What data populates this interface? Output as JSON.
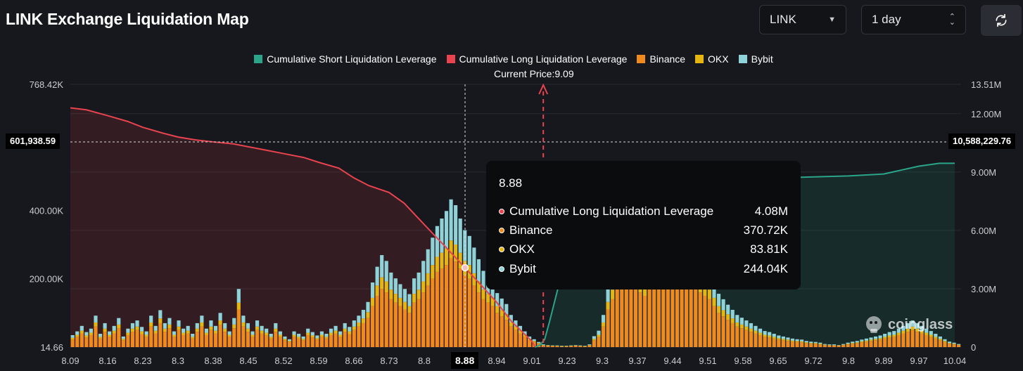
{
  "header": {
    "title": "LINK Exchange Liquidation Map",
    "coin_select": "LINK",
    "range_select": "1 day",
    "refresh_icon": "refresh-icon"
  },
  "watermark": "coinglass",
  "current_price_label": "Current Price:9.09",
  "crosshair": {
    "left_value": "601,938.59",
    "right_value": "10,588,229.76",
    "x_value": "8.88"
  },
  "tooltip": {
    "title": "8.88",
    "rows": [
      {
        "label": "Cumulative Long Liquidation Leverage",
        "value": "4.08M",
        "color": "#e8434f"
      },
      {
        "label": "Binance",
        "value": "370.72K",
        "color": "#f08a1c"
      },
      {
        "label": "OKX",
        "value": "83.81K",
        "color": "#e5b611"
      },
      {
        "label": "Bybit",
        "value": "244.04K",
        "color": "#8fd3d8"
      }
    ]
  },
  "colors": {
    "short": "#2aa58a",
    "long": "#e8434f",
    "binance": "#f08a1c",
    "okx": "#e5b611",
    "bybit": "#8fd3d8"
  },
  "chart_data": {
    "type": "bar",
    "title": "LINK Exchange Liquidation Map",
    "legend": [
      {
        "name": "Cumulative Short Liquidation Leverage",
        "color": "#2aa58a"
      },
      {
        "name": "Cumulative Long Liquidation Leverage",
        "color": "#e8434f"
      },
      {
        "name": "Binance",
        "color": "#f08a1c"
      },
      {
        "name": "OKX",
        "color": "#e5b611"
      },
      {
        "name": "Bybit",
        "color": "#8fd3d8"
      }
    ],
    "x_ticks": [
      "8.09",
      "8.16",
      "8.23",
      "8.3",
      "8.38",
      "8.45",
      "8.52",
      "8.59",
      "8.66",
      "8.73",
      "8.8",
      "8.88",
      "8.94",
      "9.01",
      "9.23",
      "9.3",
      "9.37",
      "9.44",
      "9.51",
      "9.58",
      "9.65",
      "9.72",
      "9.8",
      "9.89",
      "9.97",
      "10.04"
    ],
    "left_axis": {
      "ticks": [
        "14.66",
        "200.00K",
        "400.00K",
        "768.42K"
      ],
      "tick_values": [
        14.66,
        200000,
        400000,
        768420
      ],
      "range": [
        0,
        768420
      ]
    },
    "right_axis": {
      "ticks": [
        "0",
        "3.00M",
        "6.00M",
        "9.00M",
        "12.00M",
        "13.51M"
      ],
      "tick_values": [
        0,
        3000000,
        6000000,
        9000000,
        12000000,
        13510000
      ],
      "range": [
        0,
        13510000
      ]
    },
    "current_price": 9.09,
    "price_range": [
      8.09,
      10.04
    ],
    "series": [
      {
        "name": "Cumulative Long Liquidation Leverage",
        "axis": "right",
        "x": [
          8.09,
          8.12,
          8.16,
          8.2,
          8.23,
          8.27,
          8.3,
          8.34,
          8.38,
          8.42,
          8.45,
          8.49,
          8.52,
          8.56,
          8.59,
          8.63,
          8.66,
          8.69,
          8.73,
          8.76,
          8.8,
          8.84,
          8.88,
          8.91,
          8.94,
          8.97,
          9.01,
          9.03
        ],
        "values": [
          12.3,
          12.2,
          11.9,
          11.6,
          11.3,
          11.0,
          10.8,
          10.65,
          10.55,
          10.45,
          10.3,
          10.1,
          9.95,
          9.75,
          9.5,
          9.2,
          8.7,
          8.3,
          7.95,
          7.4,
          6.3,
          5.2,
          4.08,
          3.2,
          2.3,
          1.3,
          0.3,
          0.0
        ]
      },
      {
        "name": "Cumulative Short Liquidation Leverage",
        "axis": "right",
        "x": [
          9.03,
          9.06,
          9.09,
          9.12,
          9.16,
          9.2,
          9.23,
          9.27,
          9.3,
          9.37,
          9.44,
          9.51,
          9.58,
          9.65,
          9.72,
          9.8,
          9.89,
          9.93,
          9.97,
          10.01,
          10.04
        ],
        "values": [
          0.0,
          0.1,
          0.4,
          1.3,
          2.6,
          3.9,
          4.9,
          6.0,
          6.8,
          7.8,
          8.35,
          8.55,
          8.65,
          8.7,
          8.75,
          8.8,
          8.9,
          9.1,
          9.3,
          9.45,
          9.45
        ]
      }
    ],
    "bars_note": "Stacked per-price-level liquidation volume (Binance / OKX / Bybit) on left axis, in thousands",
    "bars": {
      "binance": [
        22,
        30,
        40,
        28,
        35,
        60,
        25,
        45,
        30,
        40,
        55,
        20,
        35,
        45,
        50,
        38,
        30,
        60,
        40,
        70,
        45,
        55,
        30,
        50,
        35,
        40,
        25,
        45,
        60,
        35,
        50,
        40,
        65,
        45,
        30,
        55,
        110,
        60,
        45,
        30,
        50,
        40,
        35,
        25,
        45,
        30,
        20,
        15,
        30,
        25,
        20,
        35,
        28,
        22,
        30,
        25,
        35,
        40,
        30,
        45,
        38,
        50,
        60,
        70,
        85,
        120,
        150,
        170,
        160,
        140,
        130,
        120,
        110,
        100,
        130,
        140,
        160,
        180,
        200,
        220,
        230,
        240,
        260,
        250,
        230,
        210,
        200,
        180,
        160,
        140,
        130,
        120,
        100,
        90,
        80,
        60,
        50,
        40,
        30,
        20,
        15,
        10,
        5,
        4,
        3,
        3,
        2,
        2,
        3,
        4,
        3,
        2,
        5,
        20,
        30,
        60,
        110,
        140,
        170,
        190,
        210,
        200,
        180,
        160,
        150,
        170,
        190,
        210,
        230,
        250,
        270,
        260,
        240,
        220,
        200,
        180,
        160,
        150,
        140,
        120,
        100,
        90,
        80,
        70,
        60,
        55,
        50,
        45,
        40,
        35,
        30,
        28,
        25,
        22,
        20,
        18,
        16,
        15,
        14,
        12,
        10,
        10,
        8,
        6,
        5,
        5,
        4,
        6,
        8,
        10,
        12,
        14,
        16,
        18,
        20,
        22,
        25,
        28,
        30,
        35,
        40,
        45,
        50,
        45,
        40,
        35,
        30,
        25,
        20,
        15,
        10,
        8,
        6
      ],
      "okx": [
        5,
        6,
        8,
        6,
        7,
        12,
        5,
        9,
        6,
        8,
        11,
        4,
        7,
        9,
        10,
        8,
        6,
        12,
        8,
        14,
        9,
        11,
        6,
        10,
        7,
        8,
        5,
        9,
        12,
        7,
        10,
        8,
        13,
        9,
        6,
        11,
        20,
        12,
        9,
        6,
        10,
        8,
        7,
        5,
        9,
        6,
        4,
        3,
        6,
        5,
        4,
        7,
        6,
        4,
        6,
        5,
        7,
        8,
        6,
        9,
        8,
        10,
        12,
        14,
        17,
        24,
        30,
        34,
        32,
        28,
        26,
        24,
        22,
        20,
        26,
        28,
        32,
        36,
        40,
        44,
        46,
        48,
        52,
        50,
        46,
        42,
        40,
        36,
        32,
        28,
        26,
        24,
        20,
        18,
        16,
        12,
        10,
        8,
        6,
        4,
        3,
        2,
        1,
        1,
        1,
        1,
        1,
        1,
        1,
        1,
        1,
        1,
        1,
        4,
        6,
        12,
        22,
        28,
        34,
        38,
        42,
        40,
        36,
        32,
        30,
        34,
        38,
        42,
        46,
        50,
        54,
        52,
        48,
        44,
        40,
        36,
        32,
        30,
        28,
        24,
        20,
        18,
        16,
        14,
        12,
        11,
        10,
        9,
        8,
        7,
        6,
        6,
        5,
        4,
        4,
        4,
        3,
        3,
        3,
        2,
        2,
        2,
        2,
        1,
        1,
        1,
        1,
        1,
        2,
        2,
        2,
        3,
        3,
        4,
        4,
        4,
        5,
        6,
        6,
        7,
        8,
        9,
        10,
        9,
        8,
        7,
        6,
        5,
        4,
        3,
        2,
        2,
        1
      ],
      "bybit": [
        8,
        10,
        14,
        10,
        12,
        20,
        9,
        16,
        10,
        14,
        19,
        7,
        12,
        16,
        18,
        13,
        10,
        20,
        14,
        24,
        16,
        19,
        10,
        18,
        12,
        14,
        9,
        16,
        20,
        12,
        18,
        14,
        22,
        16,
        10,
        19,
        40,
        20,
        16,
        10,
        18,
        14,
        12,
        9,
        16,
        10,
        7,
        5,
        10,
        9,
        7,
        12,
        10,
        8,
        10,
        9,
        12,
        14,
        10,
        16,
        13,
        18,
        20,
        25,
        30,
        45,
        55,
        65,
        60,
        50,
        45,
        40,
        38,
        35,
        45,
        50,
        60,
        70,
        80,
        90,
        100,
        110,
        120,
        115,
        100,
        90,
        85,
        75,
        65,
        55,
        50,
        45,
        38,
        34,
        30,
        22,
        18,
        14,
        10,
        7,
        5,
        3,
        2,
        1,
        1,
        1,
        1,
        1,
        1,
        1,
        1,
        1,
        2,
        8,
        12,
        22,
        40,
        50,
        62,
        70,
        78,
        74,
        66,
        58,
        54,
        62,
        70,
        78,
        86,
        94,
        102,
        98,
        90,
        82,
        74,
        66,
        58,
        54,
        50,
        44,
        36,
        32,
        28,
        25,
        22,
        20,
        18,
        16,
        14,
        12,
        11,
        10,
        9,
        8,
        7,
        6,
        6,
        5,
        5,
        4,
        4,
        3,
        3,
        2,
        2,
        2,
        1,
        2,
        3,
        4,
        4,
        5,
        6,
        6,
        7,
        8,
        9,
        10,
        11,
        12,
        14,
        16,
        18,
        16,
        14,
        12,
        11,
        9,
        7,
        5,
        4,
        3,
        2
      ]
    }
  }
}
